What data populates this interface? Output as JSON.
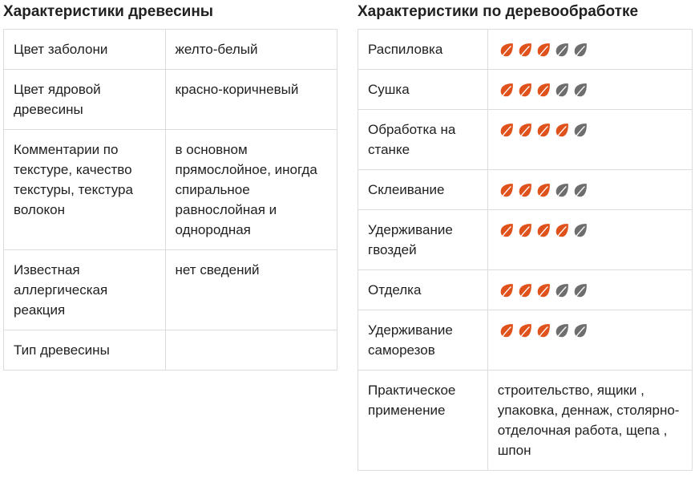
{
  "wood": {
    "title": "Характеристики древесины",
    "rows": [
      {
        "key": "Цвет заболони",
        "value": "желто-белый"
      },
      {
        "key": "Цвет ядровой древесины",
        "value": "красно-коричневый"
      },
      {
        "key": "Комментарии по текстуре, качество текстуры, текстура волокон",
        "value": "в основном прямослойное, иногда спиральное равнослойная и однородная"
      },
      {
        "key": "Известная аллергическая реакция",
        "value": "нет сведений"
      },
      {
        "key": "Тип древесины",
        "value": ""
      }
    ]
  },
  "woodworking": {
    "title": "Характеристики по деревообработке",
    "max_rating": 5,
    "rows": [
      {
        "key": "Распиловка",
        "rating": 3
      },
      {
        "key": "Сушка",
        "rating": 3
      },
      {
        "key": "Обработка на станке",
        "rating": 4
      },
      {
        "key": "Склеивание",
        "rating": 3
      },
      {
        "key": "Удерживание гвоздей",
        "rating": 4
      },
      {
        "key": "Отделка",
        "rating": 3
      },
      {
        "key": "Удерживание саморезов",
        "rating": 3
      }
    ],
    "usage": {
      "key": "Практическое применение",
      "value": "строительство, ящики , упаковка, деннаж, столярно-отделочная работа, щепа , шпон"
    }
  },
  "colors": {
    "leaf_filled": "#e0521b",
    "leaf_empty": "#6e6e6e",
    "border": "#dcdcdc",
    "text": "#212121"
  },
  "icons": {
    "rating_unit": "leaf-icon"
  }
}
